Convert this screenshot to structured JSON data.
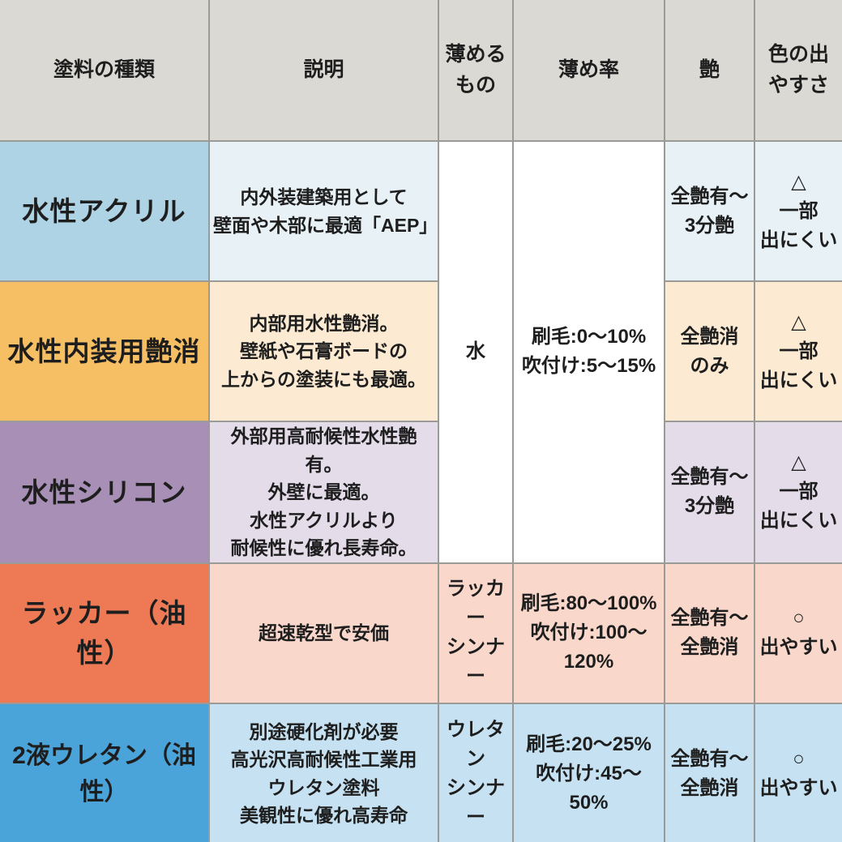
{
  "colors": {
    "header_bg": "#dbd9d3",
    "border": "#9a9a96",
    "text": "#1e1e1e",
    "merged_bg": "#ffffff",
    "row_accents": [
      "#aed3e4",
      "#f7bf63",
      "#a88fb5",
      "#ed7a55",
      "#4aa3d9"
    ],
    "row_tints": [
      "#e7f1f6",
      "#fcead2",
      "#e5dcea",
      "#f9d7cb",
      "#c6e2f2"
    ]
  },
  "table": {
    "headers": {
      "type": "塗料の種類",
      "description": "説明",
      "thinner": "薄める\nもの",
      "ratio": "薄め率",
      "gloss": "艶",
      "color_ease": "色の出\nやすさ"
    },
    "merged": {
      "thinner_rows1to3": "水",
      "ratio_rows1to3": "刷毛:0〜10%\n吹付け:5〜15%",
      "bg": "#ffffff"
    },
    "rows": [
      {
        "name": "水性アクリル",
        "description": "内外装建築用として\n壁面や木部に最適「AEP」",
        "gloss": "全艶有〜\n3分艶",
        "color_ease": "△\n一部\n出にくい",
        "name_bg": "#aed3e4",
        "tint_bg": "#e7f1f6"
      },
      {
        "name": "水性内装用艶消",
        "description": "内部用水性艶消。\n壁紙や石膏ボードの\n上からの塗装にも最適。",
        "gloss": "全艶消\nのみ",
        "color_ease": "△\n一部\n出にくい",
        "name_bg": "#f7bf63",
        "tint_bg": "#fcead2"
      },
      {
        "name": "水性シリコン",
        "description": "外部用高耐候性水性艶有。\n外壁に最適。\n水性アクリルより\n耐候性に優れ長寿命。",
        "gloss": "全艶有〜\n3分艶",
        "color_ease": "△\n一部\n出にくい",
        "name_bg": "#a88fb5",
        "tint_bg": "#e5dcea"
      },
      {
        "name": "ラッカー（油性）",
        "description": "超速乾型で安価",
        "thinner": "ラッカー\nシンナー",
        "ratio": "刷毛:80〜100%\n吹付け:100〜120%",
        "gloss": "全艶有〜\n全艶消",
        "color_ease": "○\n出やすい",
        "name_bg": "#ed7a55",
        "tint_bg": "#f9d7cb"
      },
      {
        "name": "2液ウレタン（油性）",
        "description": "別途硬化剤が必要\n高光沢高耐候性工業用\nウレタン塗料\n美観性に優れ高寿命",
        "thinner": "ウレタン\nシンナー",
        "ratio": "刷毛:20〜25%\n吹付け:45〜50%",
        "gloss": "全艶有〜\n全艶消",
        "color_ease": "○\n出やすい",
        "name_bg": "#4aa3d9",
        "tint_bg": "#c6e2f2"
      }
    ]
  }
}
